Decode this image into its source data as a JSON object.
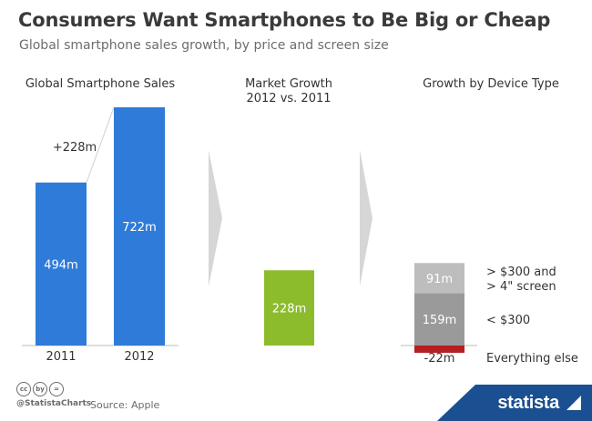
{
  "header": {
    "title": "Consumers Want Smartphones to Be Big or Cheap",
    "subtitle": "Global smartphone sales growth, by price and screen size"
  },
  "colors": {
    "blue": "#2f7bd9",
    "green": "#8cbc2c",
    "light_gray": "#bdbdbd",
    "mid_gray": "#9a9a9a",
    "red": "#b51f1f",
    "arrow_gray": "#d6d6d6"
  },
  "chart_data": [
    {
      "type": "bar",
      "title": "Global Smartphone Sales",
      "categories": [
        "2011",
        "2012"
      ],
      "values": [
        494,
        722
      ],
      "labels": [
        "494m",
        "722m"
      ],
      "annotation": "+228m",
      "color": "#2f7bd9"
    },
    {
      "type": "bar",
      "title": "Market Growth\n2012 vs. 2011",
      "categories": [
        ""
      ],
      "values": [
        228
      ],
      "labels": [
        "228m"
      ],
      "color": "#8cbc2c"
    },
    {
      "type": "bar",
      "title": "Growth by Device Type",
      "stacked": true,
      "series": [
        {
          "name": "Everything else",
          "value": -22,
          "label": "-22m",
          "color": "#b51f1f"
        },
        {
          "name": "< $300",
          "value": 159,
          "label": "159m",
          "color": "#9a9a9a"
        },
        {
          "name": "> $300 and\n> 4\" screen",
          "value": 91,
          "label": "91m",
          "color": "#bdbdbd"
        }
      ]
    }
  ],
  "footer": {
    "cc_icons": [
      "cc",
      "by",
      "="
    ],
    "handle": "@StatistaCharts",
    "source": "Source: Apple",
    "brand": "statista"
  }
}
